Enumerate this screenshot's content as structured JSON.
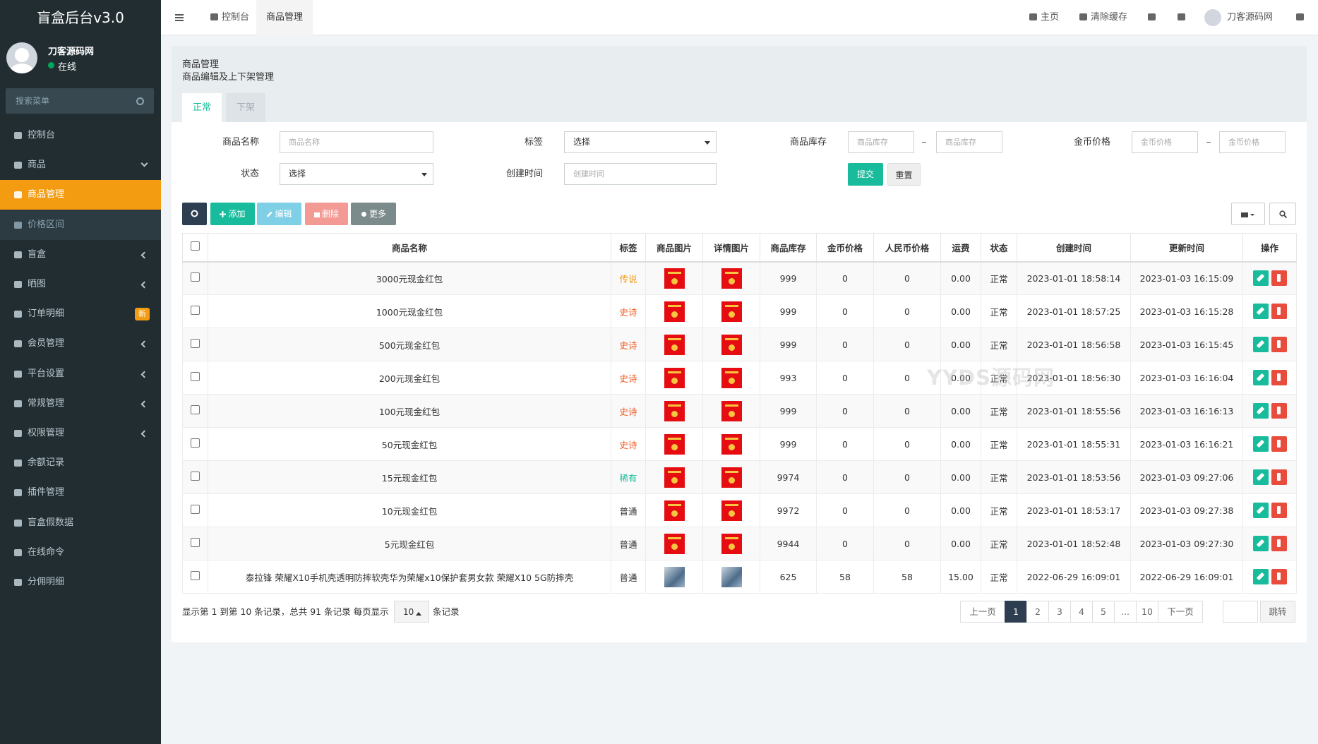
{
  "sidebar": {
    "brand": "盲盒后台v3.0",
    "user": "刀客源码网",
    "status": "在线",
    "search": "搜索菜单",
    "menu": [
      {
        "label": "控制台"
      },
      {
        "label": "商品",
        "arrow": "down"
      },
      {
        "label": "商品管理",
        "active": true
      },
      {
        "label": "价格区间",
        "sub": true
      },
      {
        "label": "盲盒",
        "arrow": "left"
      },
      {
        "label": "晒图",
        "arrow": "left"
      },
      {
        "label": "订单明细",
        "badge": "新"
      },
      {
        "label": "会员管理",
        "arrow": "left"
      },
      {
        "label": "平台设置",
        "arrow": "left"
      },
      {
        "label": "常规管理",
        "arrow": "left"
      },
      {
        "label": "权限管理",
        "arrow": "left"
      },
      {
        "label": "余额记录"
      },
      {
        "label": "插件管理"
      },
      {
        "label": "盲盒假数据"
      },
      {
        "label": "在线命令"
      },
      {
        "label": "分佣明细"
      }
    ]
  },
  "topbar": {
    "tabs": [
      "控制台",
      "商品管理"
    ],
    "links": [
      "主页",
      "清除缓存"
    ],
    "user": "刀客源码网"
  },
  "page": {
    "title": "商品管理",
    "subtitle": "商品编辑及上下架管理",
    "tabs": [
      "正常",
      "下架"
    ]
  },
  "filters": {
    "name": {
      "label": "商品名称",
      "placeholder": "商品名称"
    },
    "tag": {
      "label": "标签",
      "value": "选择"
    },
    "stock": {
      "label": "商品库存",
      "placeholders": [
        "商品库存",
        "商品库存"
      ]
    },
    "gold": {
      "label": "金币价格",
      "placeholders": [
        "金币价格",
        "金币价格"
      ]
    },
    "status": {
      "label": "状态",
      "value": "选择"
    },
    "created": {
      "label": "创建时间",
      "placeholder": "创建时间"
    },
    "buttons": [
      "提交",
      "重置"
    ]
  },
  "toolbar": [
    "添加",
    "编辑",
    "删除",
    "更多"
  ],
  "table": {
    "columns": [
      "商品名称",
      "标签",
      "商品图片",
      "详情图片",
      "商品库存",
      "金币价格",
      "人民币价格",
      "运费",
      "状态",
      "创建时间",
      "更新时间",
      "操作"
    ],
    "rows": [
      {
        "name": "3000元现金红包",
        "tag": "传说",
        "tag_color": "#f39c12",
        "stock": "999",
        "gold": "0",
        "rmb": "0",
        "freight": "0.00",
        "status": "正常",
        "created": "2023-01-01 18:58:14",
        "updated": "2023-01-03 16:15:09"
      },
      {
        "name": "1000元现金红包",
        "tag": "史诗",
        "tag_color": "#f0602b",
        "stock": "999",
        "gold": "0",
        "rmb": "0",
        "freight": "0.00",
        "status": "正常",
        "created": "2023-01-01 18:57:25",
        "updated": "2023-01-03 16:15:28"
      },
      {
        "name": "500元现金红包",
        "tag": "史诗",
        "tag_color": "#f0602b",
        "stock": "999",
        "gold": "0",
        "rmb": "0",
        "freight": "0.00",
        "status": "正常",
        "created": "2023-01-01 18:56:58",
        "updated": "2023-01-03 16:15:45"
      },
      {
        "name": "200元现金红包",
        "tag": "史诗",
        "tag_color": "#f0602b",
        "stock": "993",
        "gold": "0",
        "rmb": "0",
        "freight": "0.00",
        "status": "正常",
        "created": "2023-01-01 18:56:30",
        "updated": "2023-01-03 16:16:04"
      },
      {
        "name": "100元现金红包",
        "tag": "史诗",
        "tag_color": "#f0602b",
        "stock": "999",
        "gold": "0",
        "rmb": "0",
        "freight": "0.00",
        "status": "正常",
        "created": "2023-01-01 18:55:56",
        "updated": "2023-01-03 16:16:13"
      },
      {
        "name": "50元现金红包",
        "tag": "史诗",
        "tag_color": "#f0602b",
        "stock": "999",
        "gold": "0",
        "rmb": "0",
        "freight": "0.00",
        "status": "正常",
        "created": "2023-01-01 18:55:31",
        "updated": "2023-01-03 16:16:21"
      },
      {
        "name": "15元现金红包",
        "tag": "稀有",
        "tag_color": "#18bc9c",
        "stock": "9974",
        "gold": "0",
        "rmb": "0",
        "freight": "0.00",
        "status": "正常",
        "created": "2023-01-01 18:53:56",
        "updated": "2023-01-03 09:27:06"
      },
      {
        "name": "10元现金红包",
        "tag": "普通",
        "tag_color": "#333333",
        "stock": "9972",
        "gold": "0",
        "rmb": "0",
        "freight": "0.00",
        "status": "正常",
        "created": "2023-01-01 18:53:17",
        "updated": "2023-01-03 09:27:38"
      },
      {
        "name": "5元现金红包",
        "tag": "普通",
        "tag_color": "#333333",
        "stock": "9944",
        "gold": "0",
        "rmb": "0",
        "freight": "0.00",
        "status": "正常",
        "created": "2023-01-01 18:52:48",
        "updated": "2023-01-03 09:27:30"
      },
      {
        "name": "泰拉锋 荣耀X10手机壳透明防摔软壳华为荣耀x10保护套男女款 荣耀X10 5G防摔壳",
        "tag": "普通",
        "tag_color": "#333333",
        "stock": "625",
        "gold": "58",
        "rmb": "58",
        "freight": "15.00",
        "status": "正常",
        "created": "2022-06-29 16:09:01",
        "updated": "2022-06-29 16:09:01"
      }
    ]
  },
  "pagination": {
    "info": "显示第 1 到第 10 条记录，总共 91 条记录 每页显示",
    "page_size": "10",
    "suffix": "条记录",
    "buttons": [
      "上一页",
      "1",
      "2",
      "3",
      "4",
      "5",
      "...",
      "10",
      "下一页"
    ],
    "jump": "跳转"
  },
  "watermark": "YYDS源码网"
}
